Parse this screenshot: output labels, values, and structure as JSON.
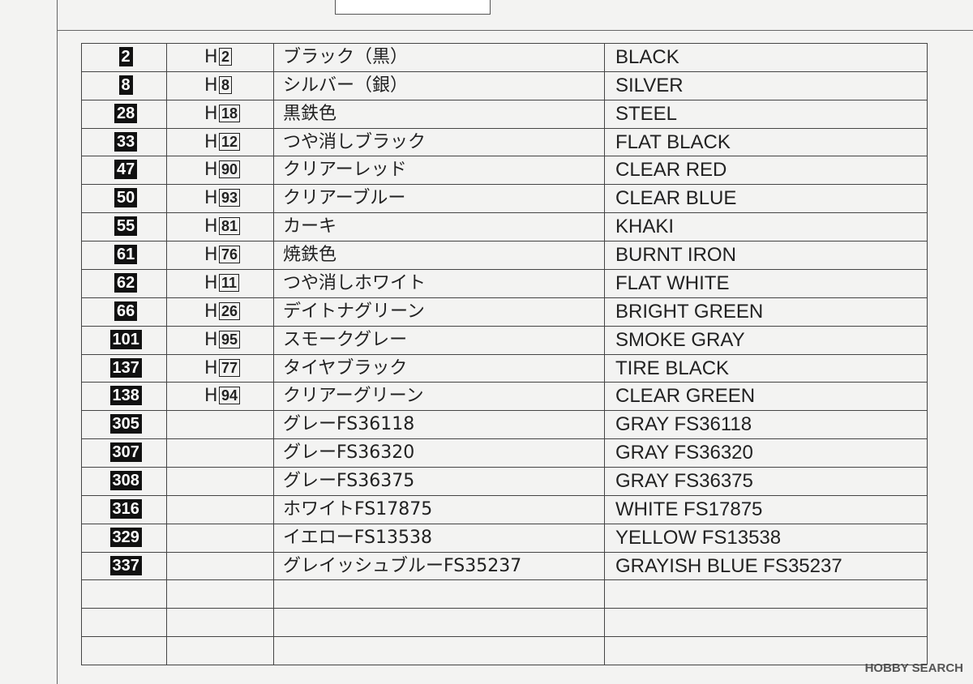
{
  "table": {
    "rows": [
      {
        "code": "2",
        "h": [
          "H",
          "2"
        ],
        "ja": "ブラック（黒）",
        "en": "BLACK"
      },
      {
        "code": "8",
        "h": [
          "H",
          "8"
        ],
        "ja": "シルバー（銀）",
        "en": "SILVER"
      },
      {
        "code": "28",
        "h": [
          "H",
          "18"
        ],
        "ja": "黒鉄色",
        "en": "STEEL"
      },
      {
        "code": "33",
        "h": [
          "H",
          "12"
        ],
        "ja": "つや消しブラック",
        "en": "FLAT BLACK"
      },
      {
        "code": "47",
        "h": [
          "H",
          "90"
        ],
        "ja": "クリアーレッド",
        "en": "CLEAR RED"
      },
      {
        "code": "50",
        "h": [
          "H",
          "93"
        ],
        "ja": "クリアーブルー",
        "en": "CLEAR BLUE"
      },
      {
        "code": "55",
        "h": [
          "H",
          "81"
        ],
        "ja": "カーキ",
        "en": "KHAKI"
      },
      {
        "code": "61",
        "h": [
          "H",
          "76"
        ],
        "ja": "焼鉄色",
        "en": "BURNT IRON"
      },
      {
        "code": "62",
        "h": [
          "H",
          "11"
        ],
        "ja": "つや消しホワイト",
        "en": "FLAT WHITE"
      },
      {
        "code": "66",
        "h": [
          "H",
          "26"
        ],
        "ja": "デイトナグリーン",
        "en": "BRIGHT GREEN"
      },
      {
        "code": "101",
        "h": [
          "H",
          "95"
        ],
        "ja": "スモークグレー",
        "en": "SMOKE GRAY"
      },
      {
        "code": "137",
        "h": [
          "H",
          "77"
        ],
        "ja": "タイヤブラック",
        "en": "TIRE BLACK"
      },
      {
        "code": "138",
        "h": [
          "H",
          "94"
        ],
        "ja": "クリアーグリーン",
        "en": "CLEAR GREEN"
      },
      {
        "code": "305",
        "ja": "グレーFS36118",
        "en": "GRAY FS36118"
      },
      {
        "code": "307",
        "ja": "グレーFS36320",
        "en": "GRAY FS36320"
      },
      {
        "code": "308",
        "ja": "グレーFS36375",
        "en": "GRAY FS36375"
      },
      {
        "code": "316",
        "ja": "ホワイトFS17875",
        "en": "WHITE FS17875"
      },
      {
        "code": "329",
        "ja": "イエローFS13538",
        "en": "YELLOW FS13538"
      },
      {
        "code": "337",
        "ja": "グレイッシュブルーFS35237",
        "en": "GRAYISH BLUE FS35237"
      }
    ]
  },
  "watermark": "HOBBY SEARCH"
}
